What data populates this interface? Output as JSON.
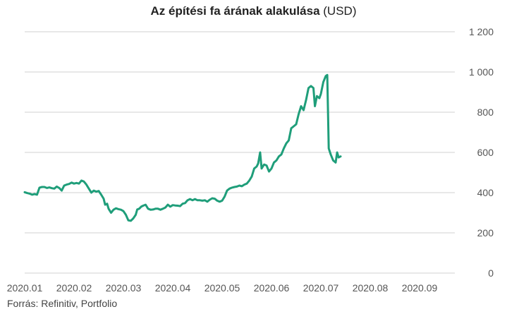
{
  "title": {
    "bold": "Az építési fa árának alakulása",
    "unit": "(USD)"
  },
  "source": "Forrás: Refinitiv, Portfolio",
  "colors": {
    "line": "#1f9e7a",
    "grid": "#d0d0d0",
    "tick_text": "#555555"
  },
  "chart_data": {
    "type": "line",
    "title": "Az építési fa árának alakulása (USD)",
    "xlabel": "",
    "ylabel": "",
    "ylim": [
      0,
      1200
    ],
    "yticks": [
      0,
      200,
      400,
      600,
      800,
      1000,
      1200
    ],
    "ytick_labels": [
      "0",
      "200",
      "400",
      "600",
      "800",
      "1 000",
      "1 200"
    ],
    "x_tick_labels": [
      "2020.01",
      "2020.02",
      "2020.03",
      "2020.04",
      "2020.05",
      "2020.06",
      "2020.07",
      "2020.08",
      "2020.09"
    ],
    "y_axis_side": "right",
    "grid": true,
    "legend": "none",
    "series": [
      {
        "values": [
          {
            "x": 0.0,
            "y": 402
          },
          {
            "x": 0.05,
            "y": 398
          },
          {
            "x": 0.1,
            "y": 395
          },
          {
            "x": 0.15,
            "y": 390
          },
          {
            "x": 0.2,
            "y": 393
          },
          {
            "x": 0.25,
            "y": 390
          },
          {
            "x": 0.3,
            "y": 425
          },
          {
            "x": 0.35,
            "y": 428
          },
          {
            "x": 0.4,
            "y": 428
          },
          {
            "x": 0.45,
            "y": 423
          },
          {
            "x": 0.5,
            "y": 426
          },
          {
            "x": 0.55,
            "y": 422
          },
          {
            "x": 0.6,
            "y": 420
          },
          {
            "x": 0.65,
            "y": 430
          },
          {
            "x": 0.7,
            "y": 423
          },
          {
            "x": 0.75,
            "y": 410
          },
          {
            "x": 0.8,
            "y": 435
          },
          {
            "x": 0.85,
            "y": 440
          },
          {
            "x": 0.9,
            "y": 443
          },
          {
            "x": 0.95,
            "y": 450
          },
          {
            "x": 1.0,
            "y": 445
          },
          {
            "x": 1.05,
            "y": 448
          },
          {
            "x": 1.1,
            "y": 445
          },
          {
            "x": 1.15,
            "y": 460
          },
          {
            "x": 1.2,
            "y": 455
          },
          {
            "x": 1.25,
            "y": 440
          },
          {
            "x": 1.3,
            "y": 420
          },
          {
            "x": 1.35,
            "y": 400
          },
          {
            "x": 1.4,
            "y": 410
          },
          {
            "x": 1.45,
            "y": 405
          },
          {
            "x": 1.5,
            "y": 408
          },
          {
            "x": 1.55,
            "y": 390
          },
          {
            "x": 1.6,
            "y": 370
          },
          {
            "x": 1.63,
            "y": 340
          },
          {
            "x": 1.67,
            "y": 345
          },
          {
            "x": 1.7,
            "y": 320
          },
          {
            "x": 1.75,
            "y": 300
          },
          {
            "x": 1.8,
            "y": 315
          },
          {
            "x": 1.85,
            "y": 322
          },
          {
            "x": 1.9,
            "y": 318
          },
          {
            "x": 1.95,
            "y": 315
          },
          {
            "x": 2.0,
            "y": 308
          },
          {
            "x": 2.05,
            "y": 290
          },
          {
            "x": 2.1,
            "y": 262
          },
          {
            "x": 2.15,
            "y": 260
          },
          {
            "x": 2.2,
            "y": 272
          },
          {
            "x": 2.25,
            "y": 290
          },
          {
            "x": 2.28,
            "y": 316
          },
          {
            "x": 2.32,
            "y": 320
          },
          {
            "x": 2.36,
            "y": 330
          },
          {
            "x": 2.4,
            "y": 335
          },
          {
            "x": 2.45,
            "y": 340
          },
          {
            "x": 2.5,
            "y": 320
          },
          {
            "x": 2.55,
            "y": 315
          },
          {
            "x": 2.6,
            "y": 316
          },
          {
            "x": 2.65,
            "y": 320
          },
          {
            "x": 2.7,
            "y": 320
          },
          {
            "x": 2.75,
            "y": 315
          },
          {
            "x": 2.8,
            "y": 320
          },
          {
            "x": 2.85,
            "y": 326
          },
          {
            "x": 2.9,
            "y": 340
          },
          {
            "x": 2.95,
            "y": 330
          },
          {
            "x": 3.0,
            "y": 338
          },
          {
            "x": 3.05,
            "y": 336
          },
          {
            "x": 3.1,
            "y": 335
          },
          {
            "x": 3.15,
            "y": 333
          },
          {
            "x": 3.2,
            "y": 345
          },
          {
            "x": 3.25,
            "y": 348
          },
          {
            "x": 3.3,
            "y": 362
          },
          {
            "x": 3.35,
            "y": 368
          },
          {
            "x": 3.4,
            "y": 362
          },
          {
            "x": 3.45,
            "y": 368
          },
          {
            "x": 3.5,
            "y": 362
          },
          {
            "x": 3.55,
            "y": 362
          },
          {
            "x": 3.6,
            "y": 360
          },
          {
            "x": 3.65,
            "y": 362
          },
          {
            "x": 3.7,
            "y": 355
          },
          {
            "x": 3.75,
            "y": 365
          },
          {
            "x": 3.8,
            "y": 372
          },
          {
            "x": 3.85,
            "y": 370
          },
          {
            "x": 3.9,
            "y": 360
          },
          {
            "x": 3.95,
            "y": 355
          },
          {
            "x": 4.0,
            "y": 360
          },
          {
            "x": 4.05,
            "y": 380
          },
          {
            "x": 4.1,
            "y": 410
          },
          {
            "x": 4.15,
            "y": 420
          },
          {
            "x": 4.2,
            "y": 425
          },
          {
            "x": 4.25,
            "y": 428
          },
          {
            "x": 4.3,
            "y": 430
          },
          {
            "x": 4.35,
            "y": 435
          },
          {
            "x": 4.4,
            "y": 432
          },
          {
            "x": 4.45,
            "y": 440
          },
          {
            "x": 4.5,
            "y": 445
          },
          {
            "x": 4.55,
            "y": 460
          },
          {
            "x": 4.6,
            "y": 480
          },
          {
            "x": 4.65,
            "y": 520
          },
          {
            "x": 4.7,
            "y": 530
          },
          {
            "x": 4.73,
            "y": 545
          },
          {
            "x": 4.77,
            "y": 600
          },
          {
            "x": 4.8,
            "y": 520
          },
          {
            "x": 4.85,
            "y": 540
          },
          {
            "x": 4.9,
            "y": 535
          },
          {
            "x": 4.95,
            "y": 505
          },
          {
            "x": 5.0,
            "y": 520
          },
          {
            "x": 5.05,
            "y": 550
          },
          {
            "x": 5.1,
            "y": 560
          },
          {
            "x": 5.15,
            "y": 580
          },
          {
            "x": 5.2,
            "y": 590
          },
          {
            "x": 5.25,
            "y": 620
          },
          {
            "x": 5.3,
            "y": 645
          },
          {
            "x": 5.35,
            "y": 660
          },
          {
            "x": 5.4,
            "y": 720
          },
          {
            "x": 5.45,
            "y": 730
          },
          {
            "x": 5.5,
            "y": 740
          },
          {
            "x": 5.55,
            "y": 790
          },
          {
            "x": 5.6,
            "y": 830
          },
          {
            "x": 5.65,
            "y": 810
          },
          {
            "x": 5.7,
            "y": 860
          },
          {
            "x": 5.75,
            "y": 920
          },
          {
            "x": 5.8,
            "y": 930
          },
          {
            "x": 5.85,
            "y": 920
          },
          {
            "x": 5.88,
            "y": 830
          },
          {
            "x": 5.92,
            "y": 880
          },
          {
            "x": 5.97,
            "y": 870
          },
          {
            "x": 6.0,
            "y": 890
          },
          {
            "x": 6.05,
            "y": 950
          },
          {
            "x": 6.1,
            "y": 980
          },
          {
            "x": 6.13,
            "y": 985
          },
          {
            "x": 6.16,
            "y": 620
          },
          {
            "x": 6.2,
            "y": 590
          },
          {
            "x": 6.25,
            "y": 560
          },
          {
            "x": 6.3,
            "y": 550
          },
          {
            "x": 6.33,
            "y": 600
          },
          {
            "x": 6.36,
            "y": 575
          },
          {
            "x": 6.4,
            "y": 580
          }
        ]
      }
    ]
  }
}
